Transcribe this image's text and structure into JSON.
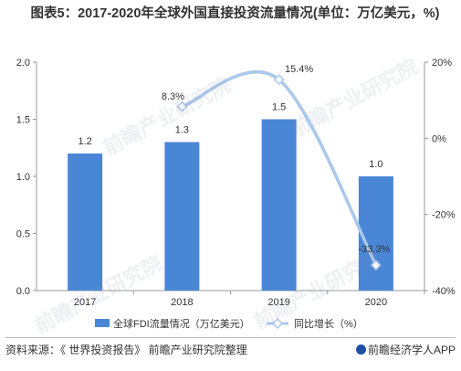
{
  "title": "图表5：2017-2020年全球外国直接投资流量情况(单位：万亿美元，%)",
  "source": "资料来源：《 世界投资报告》 前瞻产业研究院整理",
  "brand": "前瞻经济学人APP",
  "watermark": "前瞻产业研究院",
  "colors": {
    "bar": "#4a86d6",
    "line": "#aac8ec",
    "axis": "#999999",
    "text": "#333333"
  },
  "chart_data": {
    "type": "bar",
    "categories": [
      "2017",
      "2018",
      "2019",
      "2020"
    ],
    "series": [
      {
        "name": "全球FDI流量情况（万亿美元）",
        "kind": "bar",
        "axis": "left",
        "values": [
          1.2,
          1.3,
          1.5,
          1.0
        ],
        "labels": [
          "1.2",
          "1.3",
          "1.5",
          "1.0"
        ]
      },
      {
        "name": "同比增长（%）",
        "kind": "line",
        "axis": "right",
        "values": [
          null,
          8.3,
          15.4,
          -33.3
        ],
        "labels": [
          "",
          "8.3%",
          "15.4%",
          "-33.3%"
        ]
      }
    ],
    "ylim_left": [
      0,
      2.0
    ],
    "yticks_left": [
      "0.0",
      "0.5",
      "1.0",
      "1.5",
      "2.0"
    ],
    "ylim_right": [
      -40,
      20
    ],
    "yticks_right": [
      "-40%",
      "-20%",
      "0%",
      "20%"
    ],
    "legend_position": "bottom"
  }
}
